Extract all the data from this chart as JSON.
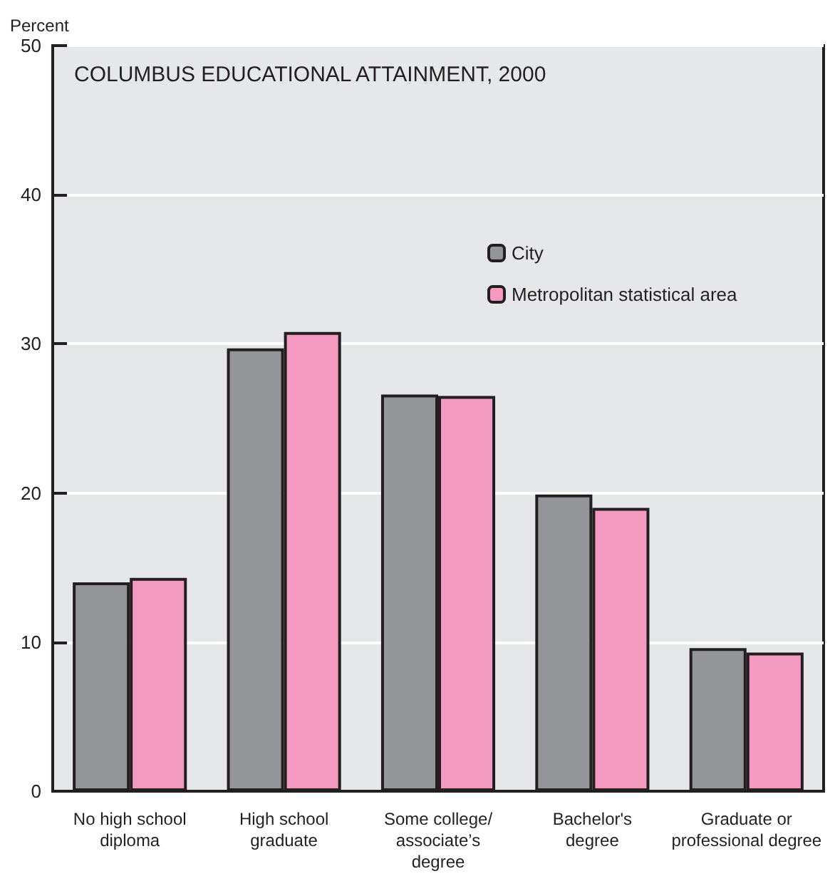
{
  "chart_data": {
    "type": "bar",
    "title": "COLUMBUS EDUCATIONAL ATTAINMENT, 2000",
    "ylabel": "Percent",
    "categories": [
      "No high school\ndiploma",
      "High school\ngraduate",
      "Some college/\nassociate’s\ndegree",
      "Bachelor's\ndegree",
      "Graduate or\nprofessional degree"
    ],
    "series": [
      {
        "name": "City",
        "color": "#939598",
        "values": [
          14.0,
          29.7,
          26.6,
          19.9,
          9.6
        ]
      },
      {
        "name": "Metropolitan statistical area",
        "color": "#f49ac1",
        "values": [
          14.3,
          30.8,
          26.5,
          19.0,
          9.3
        ]
      }
    ],
    "ylim": [
      0,
      50
    ],
    "yticks": [
      0,
      10,
      20,
      30,
      40,
      50
    ],
    "grid": "y",
    "legend": "top right"
  }
}
